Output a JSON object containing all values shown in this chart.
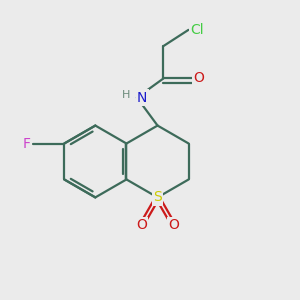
{
  "background_color": "#ebebeb",
  "atom_colors": {
    "C": "#3d6b5a",
    "N": "#1a1acc",
    "O": "#cc1a1a",
    "S": "#cccc00",
    "F": "#cc44cc",
    "Cl": "#44cc44",
    "H": "#6a8a7a"
  },
  "font_size": 10,
  "figsize": [
    3.0,
    3.0
  ],
  "dpi": 100,
  "bond_lw": 1.6,
  "xlim": [
    0,
    10
  ],
  "ylim": [
    0,
    10
  ]
}
